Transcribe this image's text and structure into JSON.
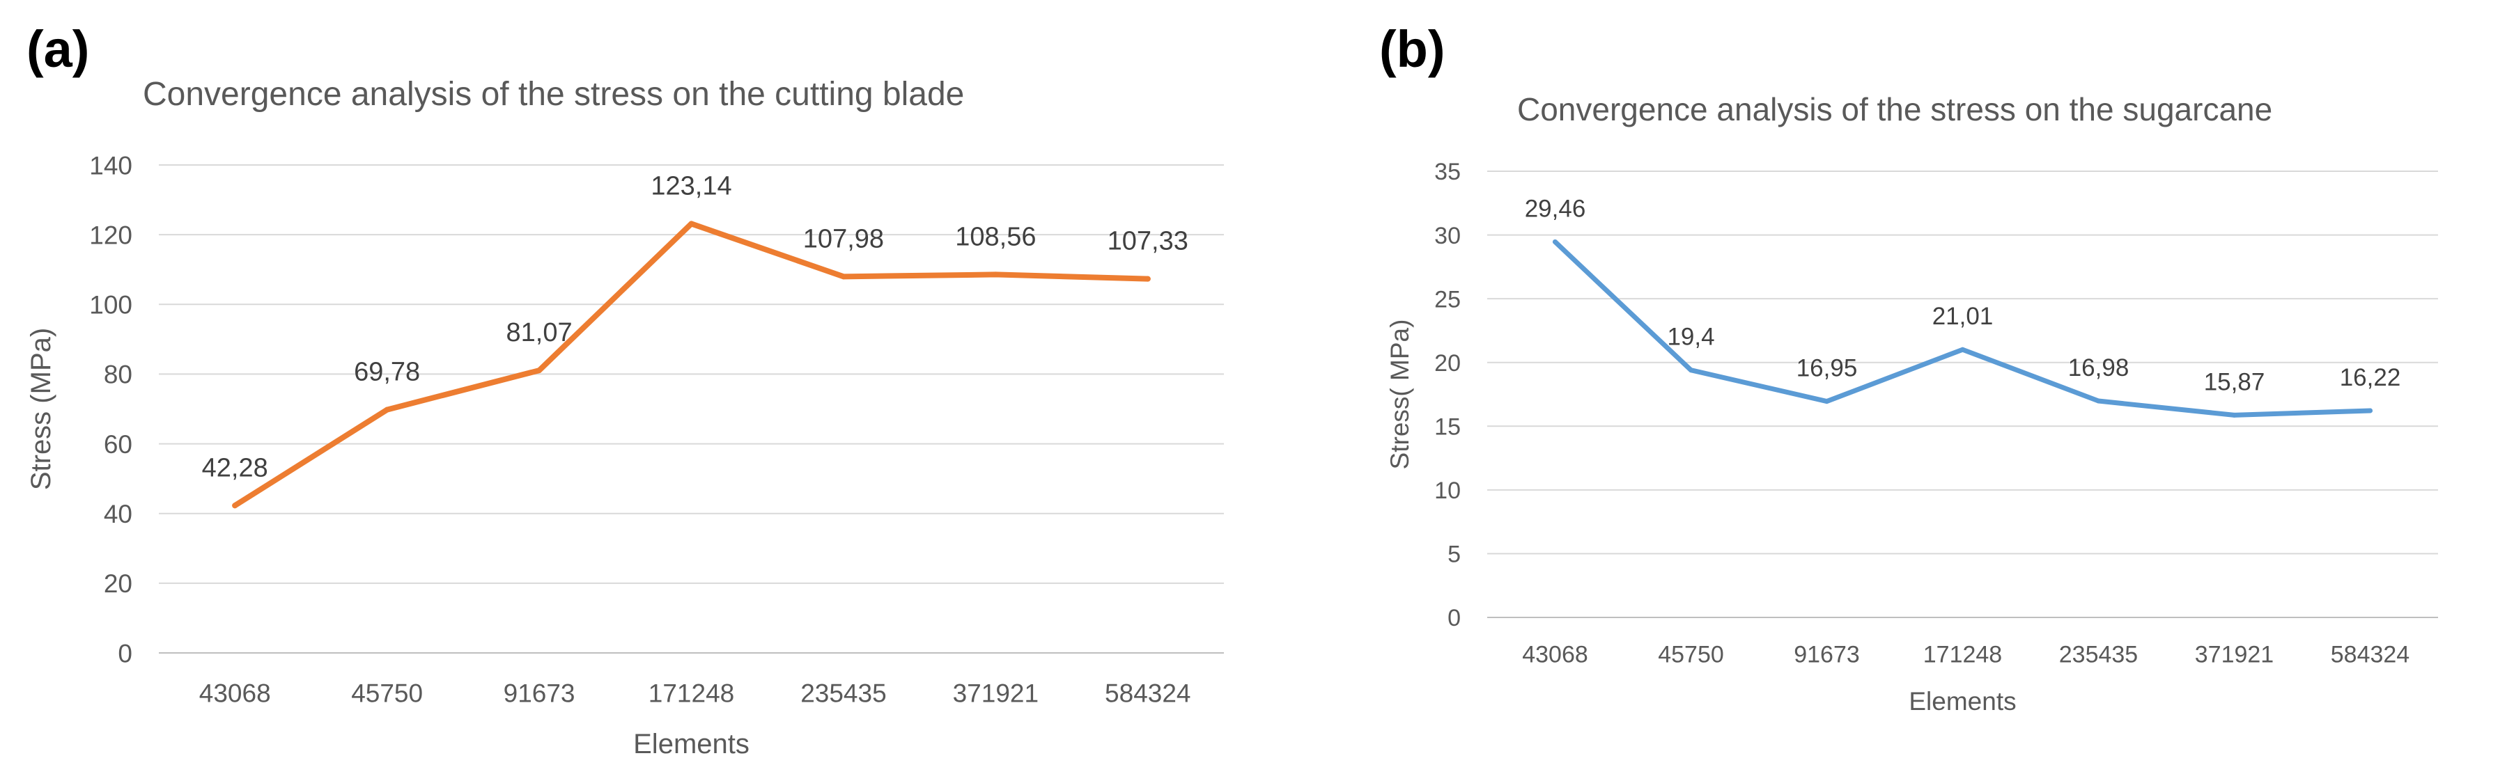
{
  "panels": [
    {
      "letter": "(a)"
    },
    {
      "letter": "(b)"
    }
  ],
  "chart_data": [
    {
      "type": "line",
      "title": "Convergence analysis of the stress on the cutting blade",
      "xlabel": "Elements",
      "ylabel": "Stress (MPa)",
      "categories": [
        "43068",
        "45750",
        "91673",
        "171248",
        "235435",
        "371921",
        "584324"
      ],
      "values": [
        42.28,
        69.78,
        81.07,
        123.14,
        107.98,
        108.56,
        107.33
      ],
      "data_labels": [
        "42,28",
        "69,78",
        "81,07",
        "123,14",
        "107,98",
        "108,56",
        "107,33"
      ],
      "ylim": [
        0,
        140
      ],
      "yticks": [
        0,
        20,
        40,
        60,
        80,
        100,
        120,
        140
      ],
      "grid": true,
      "color": "#ED7D31"
    },
    {
      "type": "line",
      "title": "Convergence analysis of the stress on the sugarcane",
      "xlabel": "Elements",
      "ylabel": "Stress( MPa)",
      "categories": [
        "43068",
        "45750",
        "91673",
        "171248",
        "235435",
        "371921",
        "584324"
      ],
      "values": [
        29.46,
        19.4,
        16.95,
        21.01,
        16.98,
        15.87,
        16.22
      ],
      "data_labels": [
        "29,46",
        "19,4",
        "16,95",
        "21,01",
        "16,98",
        "15,87",
        "16,22"
      ],
      "ylim": [
        0,
        35
      ],
      "yticks": [
        0,
        5,
        10,
        15,
        20,
        25,
        30,
        35
      ],
      "grid": true,
      "color": "#5B9BD5"
    }
  ]
}
